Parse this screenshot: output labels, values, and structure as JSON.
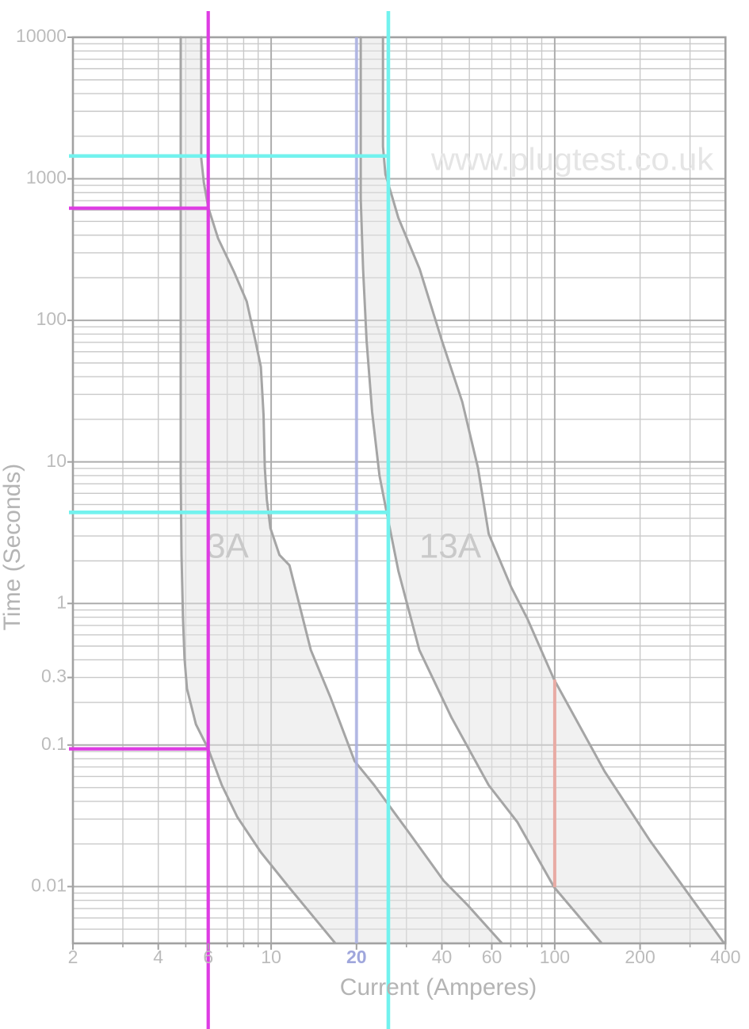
{
  "watermark": "www.plugtest.co.uk",
  "chart_data": {
    "type": "line",
    "title": "",
    "xlabel": "Current (Amperes)",
    "ylabel": "Time (Seconds)",
    "x_scale": "log",
    "y_scale": "log",
    "x_range": [
      2,
      400
    ],
    "y_range": [
      0.00397,
      10000
    ],
    "grid": "log-log full minor grid",
    "x_tick_labels": [
      "2",
      "4",
      "6",
      "10",
      "20",
      "40",
      "60",
      "100",
      "200",
      "400"
    ],
    "y_tick_labels": [
      "10000",
      "1000",
      "100",
      "10",
      "1",
      "0.3",
      "0.1",
      "0.01"
    ],
    "highlighted_x_tick": "20",
    "highlighted_x_tick_color": "#9fa6dc",
    "series": [
      {
        "name": "3A fuse operating band",
        "label": "3A",
        "min_curve_amps_seconds": [
          [
            4.8,
            10000
          ],
          [
            4.8,
            8
          ],
          [
            4.83,
            2.2
          ],
          [
            4.89,
            0.78
          ],
          [
            4.95,
            0.41
          ],
          [
            5.05,
            0.25
          ],
          [
            5.43,
            0.14
          ],
          [
            6.0,
            0.094
          ],
          [
            6.7,
            0.052
          ],
          [
            7.6,
            0.031
          ],
          [
            9.2,
            0.0175
          ],
          [
            11.6,
            0.0098
          ],
          [
            16.8,
            0.004
          ]
        ],
        "max_curve_amps_seconds": [
          [
            5.67,
            10000
          ],
          [
            5.67,
            1400
          ],
          [
            5.79,
            940
          ],
          [
            6.0,
            630
          ],
          [
            6.5,
            380
          ],
          [
            7.4,
            220
          ],
          [
            8.2,
            136
          ],
          [
            8.8,
            72
          ],
          [
            9.2,
            47
          ],
          [
            9.4,
            21.6
          ],
          [
            9.5,
            9.1
          ],
          [
            9.66,
            5.4
          ],
          [
            9.94,
            3.4
          ],
          [
            10.7,
            2.2
          ],
          [
            11.6,
            1.86
          ],
          [
            13.8,
            0.47
          ],
          [
            16.2,
            0.216
          ],
          [
            19.7,
            0.077
          ],
          [
            23.1,
            0.052
          ],
          [
            30.2,
            0.025
          ],
          [
            40.6,
            0.011
          ],
          [
            49.3,
            0.0074
          ],
          [
            65,
            0.004
          ]
        ]
      },
      {
        "name": "13A fuse operating band",
        "label": "13A",
        "min_curve_amps_seconds": [
          [
            20.7,
            10000
          ],
          [
            20.7,
            730
          ],
          [
            21.1,
            230
          ],
          [
            21.7,
            72
          ],
          [
            22.7,
            22.5
          ],
          [
            24.1,
            8
          ],
          [
            25.5,
            4.5
          ],
          [
            28.1,
            1.7
          ],
          [
            33.3,
            0.47
          ],
          [
            43.2,
            0.157
          ],
          [
            58.5,
            0.052
          ],
          [
            73.8,
            0.0286
          ],
          [
            99.5,
            0.0099
          ],
          [
            146,
            0.004
          ]
        ],
        "max_curve_amps_seconds": [
          [
            24.8,
            10000
          ],
          [
            24.8,
            1690
          ],
          [
            25.3,
            1075
          ],
          [
            26.7,
            750
          ],
          [
            28.1,
            530
          ],
          [
            33.4,
            230
          ],
          [
            40,
            72
          ],
          [
            47.2,
            26.6
          ],
          [
            53.6,
            9.1
          ],
          [
            58.5,
            3.1
          ],
          [
            70.3,
            1.3
          ],
          [
            80.1,
            0.78
          ],
          [
            99.5,
            0.29
          ],
          [
            150,
            0.065
          ],
          [
            217,
            0.021
          ],
          [
            395,
            0.004
          ]
        ]
      }
    ],
    "overlays": {
      "magenta_crosshair": {
        "color": "#de3ce3",
        "vertical_amps": 6,
        "horizontal_seconds": [
          620,
          0.094
        ]
      },
      "cyan_crosshair": {
        "color": "#72f2ee",
        "vertical_amps": 25.9,
        "horizontal_seconds": [
          1450,
          4.4
        ]
      },
      "blue_reference_line": {
        "color": "#a9b0e4",
        "amps": 20
      },
      "salmon_segment": {
        "color": "#e8aba4",
        "amps": 100,
        "seconds_range": [
          0.0099,
          0.29
        ]
      }
    },
    "style": {
      "band_fill": "#e3e3e3",
      "curve_stroke": "#a5a5a5",
      "grid_major": "#adadad",
      "grid_minor": "#c9c9c9",
      "border": "#a2a2a2",
      "tick_label": "#bcbcbc",
      "axis_title": "#b4b4b4",
      "band_label": "#c9c9c9",
      "watermark_color": "#e5e5e5"
    }
  }
}
